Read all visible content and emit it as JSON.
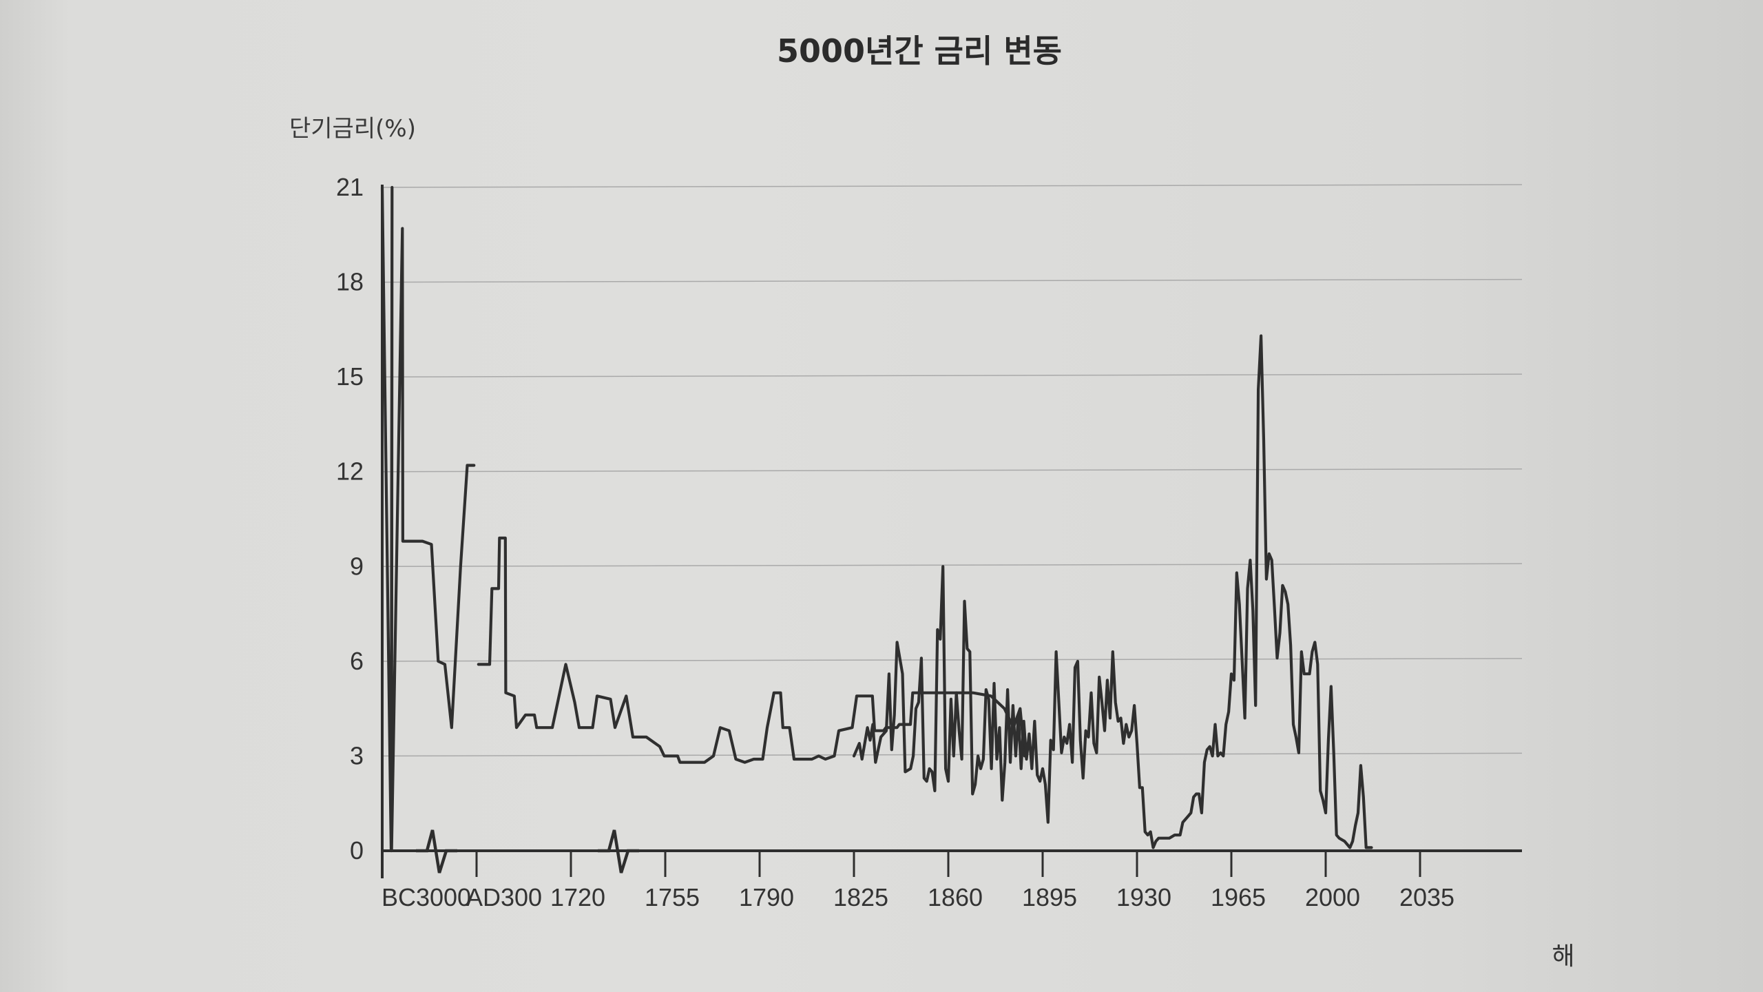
{
  "chart_data": {
    "type": "line",
    "title": "5000년간 금리 변동",
    "ylabel": "단기금리(%)",
    "xlabel": "해",
    "ylim": [
      0,
      21
    ],
    "yticks": [
      0,
      3,
      6,
      9,
      12,
      15,
      18,
      21
    ],
    "xticks": [
      "BC3000",
      "AD300",
      "1720",
      "1755",
      "1790",
      "1825",
      "1860",
      "1895",
      "1930",
      "1965",
      "2000",
      "2035"
    ],
    "grid": true,
    "axis_breaks": [
      1,
      3
    ],
    "series": [
      {
        "values": [
          [
            0,
            21
          ],
          [
            0.2,
            0
          ],
          [
            0.22,
            21
          ],
          [
            0.21,
            0
          ],
          [
            0.45,
            19.7
          ],
          [
            0.46,
            9.8
          ],
          [
            0.9,
            9.8
          ],
          [
            1.1,
            9.7
          ],
          [
            1.25,
            6
          ],
          [
            1.4,
            5.9
          ],
          [
            1.55,
            3.9
          ],
          [
            1.75,
            9
          ],
          [
            1.9,
            12.2
          ],
          [
            2.05,
            12.2
          ]
        ]
      },
      {
        "values": [
          [
            2.15,
            5.9
          ],
          [
            2.4,
            5.9
          ],
          [
            2.45,
            8.3
          ],
          [
            2.6,
            8.3
          ],
          [
            2.62,
            9.9
          ],
          [
            2.75,
            9.9
          ],
          [
            2.76,
            5
          ],
          [
            2.95,
            4.9
          ],
          [
            3.0,
            3.9
          ],
          [
            3.2,
            4.3
          ],
          [
            3.4,
            4.3
          ],
          [
            3.45,
            3.9
          ],
          [
            3.8,
            3.9
          ],
          [
            4.1,
            5.9
          ],
          [
            4.3,
            4.7
          ],
          [
            4.4,
            3.9
          ],
          [
            4.7,
            3.9
          ],
          [
            4.8,
            4.9
          ],
          [
            5.1,
            4.8
          ],
          [
            5.2,
            3.9
          ],
          [
            5.45,
            4.9
          ],
          [
            5.6,
            3.6
          ],
          [
            5.9,
            3.6
          ],
          [
            6.2,
            3.3
          ],
          [
            6.3,
            3.0
          ],
          [
            6.6,
            3.0
          ],
          [
            6.65,
            2.8
          ],
          [
            7.2,
            2.8
          ],
          [
            7.4,
            3.0
          ],
          [
            7.55,
            3.9
          ],
          [
            7.75,
            3.8
          ],
          [
            7.9,
            2.9
          ],
          [
            8.1,
            2.8
          ],
          [
            8.3,
            2.9
          ],
          [
            8.5,
            2.9
          ],
          [
            8.6,
            3.9
          ],
          [
            8.75,
            5.0
          ],
          [
            8.9,
            5.0
          ],
          [
            8.95,
            3.9
          ],
          [
            9.1,
            3.9
          ],
          [
            9.2,
            2.9
          ],
          [
            9.6,
            2.9
          ],
          [
            9.75,
            3.0
          ],
          [
            9.9,
            2.9
          ],
          [
            10.1,
            3.0
          ],
          [
            10.2,
            3.8
          ],
          [
            10.5,
            3.9
          ],
          [
            10.6,
            4.9
          ],
          [
            10.95,
            4.9
          ],
          [
            11.0,
            3.8
          ],
          [
            11.2,
            3.8
          ],
          [
            11.25,
            3.9
          ],
          [
            11.5,
            3.9
          ],
          [
            11.55,
            4.0
          ],
          [
            11.8,
            4.0
          ],
          [
            11.85,
            5.0
          ],
          [
            13.2,
            5.0
          ],
          [
            13.6,
            4.9
          ],
          [
            13.9,
            4.5
          ],
          [
            14.1,
            3.9
          ],
          [
            14.25,
            4.5
          ],
          [
            14.35,
            3.0
          ]
        ]
      },
      {
        "values": [
          [
            1825,
            3.0
          ],
          [
            1827,
            3.4
          ],
          [
            1828,
            2.9
          ],
          [
            1830,
            3.9
          ],
          [
            1831,
            3.5
          ],
          [
            1832,
            4.0
          ],
          [
            1833,
            2.8
          ],
          [
            1835,
            3.6
          ],
          [
            1837,
            3.8
          ],
          [
            1838,
            5.6
          ],
          [
            1839,
            3.2
          ],
          [
            1840,
            4.3
          ],
          [
            1841,
            6.6
          ],
          [
            1843,
            5.6
          ],
          [
            1844,
            2.5
          ],
          [
            1846,
            2.6
          ],
          [
            1847,
            3.0
          ],
          [
            1848,
            4.5
          ],
          [
            1849,
            4.7
          ],
          [
            1850,
            6.1
          ],
          [
            1851,
            2.3
          ],
          [
            1852,
            2.2
          ],
          [
            1853,
            2.6
          ],
          [
            1854,
            2.5
          ],
          [
            1855,
            1.9
          ],
          [
            1856,
            7.0
          ],
          [
            1857,
            6.7
          ],
          [
            1858,
            9.0
          ],
          [
            1859,
            2.6
          ],
          [
            1860,
            2.2
          ],
          [
            1861,
            4.8
          ],
          [
            1862,
            3.0
          ],
          [
            1863,
            5.0
          ],
          [
            1864,
            3.8
          ],
          [
            1865,
            2.9
          ],
          [
            1866,
            7.9
          ],
          [
            1867,
            6.4
          ],
          [
            1868,
            6.3
          ],
          [
            1869,
            1.8
          ],
          [
            1870,
            2.1
          ],
          [
            1871,
            3.0
          ],
          [
            1872,
            2.6
          ],
          [
            1873,
            2.9
          ],
          [
            1874,
            5.1
          ],
          [
            1875,
            4.8
          ],
          [
            1876,
            2.6
          ],
          [
            1877,
            5.3
          ],
          [
            1878,
            2.9
          ],
          [
            1879,
            3.9
          ],
          [
            1880,
            1.6
          ],
          [
            1881,
            2.8
          ],
          [
            1882,
            5.1
          ],
          [
            1883,
            2.8
          ],
          [
            1884,
            4.6
          ],
          [
            1885,
            3.0
          ],
          [
            1886,
            4.3
          ],
          [
            1887,
            2.6
          ],
          [
            1888,
            4.1
          ],
          [
            1889,
            2.9
          ],
          [
            1890,
            3.7
          ],
          [
            1891,
            2.6
          ],
          [
            1892,
            4.1
          ],
          [
            1893,
            2.4
          ],
          [
            1894,
            2.2
          ],
          [
            1895,
            2.6
          ],
          [
            1896,
            2.1
          ],
          [
            1897,
            0.9
          ],
          [
            1898,
            3.5
          ],
          [
            1899,
            3.2
          ],
          [
            1900,
            6.3
          ],
          [
            1901,
            4.7
          ],
          [
            1902,
            3.1
          ],
          [
            1903,
            3.6
          ],
          [
            1904,
            3.4
          ],
          [
            1905,
            4.0
          ],
          [
            1906,
            2.8
          ],
          [
            1907,
            5.8
          ],
          [
            1908,
            6.0
          ],
          [
            1909,
            3.5
          ],
          [
            1910,
            2.3
          ],
          [
            1911,
            3.8
          ],
          [
            1912,
            3.6
          ],
          [
            1913,
            5.0
          ],
          [
            1914,
            3.4
          ],
          [
            1915,
            3.1
          ],
          [
            1916,
            5.5
          ],
          [
            1917,
            4.7
          ],
          [
            1918,
            3.8
          ],
          [
            1919,
            5.4
          ],
          [
            1920,
            4.2
          ],
          [
            1921,
            6.3
          ],
          [
            1922,
            4.7
          ],
          [
            1923,
            4.1
          ],
          [
            1924,
            4.2
          ],
          [
            1925,
            3.4
          ],
          [
            1926,
            4.0
          ],
          [
            1927,
            3.6
          ],
          [
            1928,
            3.8
          ],
          [
            1929,
            4.6
          ],
          [
            1930,
            3.4
          ],
          [
            1931,
            2.0
          ],
          [
            1932,
            2.0
          ],
          [
            1933,
            0.6
          ],
          [
            1934,
            0.5
          ],
          [
            1935,
            0.6
          ],
          [
            1936,
            0.1
          ],
          [
            1937,
            0.3
          ],
          [
            1938,
            0.4
          ],
          [
            1940,
            0.4
          ],
          [
            1942,
            0.4
          ],
          [
            1944,
            0.5
          ],
          [
            1946,
            0.5
          ],
          [
            1947,
            0.9
          ],
          [
            1948,
            1.0
          ],
          [
            1949,
            1.1
          ],
          [
            1950,
            1.2
          ],
          [
            1951,
            1.7
          ],
          [
            1952,
            1.8
          ],
          [
            1953,
            1.8
          ],
          [
            1954,
            1.2
          ],
          [
            1955,
            2.8
          ],
          [
            1956,
            3.2
          ],
          [
            1957,
            3.3
          ],
          [
            1958,
            3.0
          ],
          [
            1959,
            4.0
          ],
          [
            1960,
            3.0
          ],
          [
            1961,
            3.1
          ],
          [
            1962,
            3.0
          ],
          [
            1963,
            4.0
          ],
          [
            1964,
            4.4
          ],
          [
            1965,
            5.6
          ],
          [
            1966,
            5.4
          ],
          [
            1967,
            8.8
          ],
          [
            1968,
            7.8
          ],
          [
            1969,
            6.0
          ],
          [
            1970,
            4.2
          ],
          [
            1971,
            8.3
          ],
          [
            1972,
            9.2
          ],
          [
            1973,
            7.6
          ],
          [
            1974,
            4.6
          ],
          [
            1975,
            14.6
          ],
          [
            1976,
            16.3
          ],
          [
            1977,
            13.0
          ],
          [
            1978,
            8.6
          ],
          [
            1979,
            9.4
          ],
          [
            1980,
            9.2
          ],
          [
            1981,
            7.7
          ],
          [
            1982,
            6.1
          ],
          [
            1983,
            6.9
          ],
          [
            1984,
            8.4
          ],
          [
            1985,
            8.2
          ],
          [
            1986,
            7.8
          ],
          [
            1987,
            6.5
          ],
          [
            1988,
            4.0
          ],
          [
            1989,
            3.6
          ],
          [
            1990,
            3.1
          ],
          [
            1991,
            6.3
          ],
          [
            1992,
            5.6
          ],
          [
            1993,
            5.6
          ],
          [
            1994,
            5.6
          ],
          [
            1995,
            6.3
          ],
          [
            1996,
            6.6
          ],
          [
            1997,
            5.9
          ],
          [
            1998,
            1.9
          ],
          [
            1999,
            1.6
          ],
          [
            2000,
            1.2
          ],
          [
            2001,
            3.5
          ],
          [
            2002,
            5.2
          ],
          [
            2003,
            3.1
          ],
          [
            2004,
            0.5
          ],
          [
            2005,
            0.4
          ],
          [
            2007,
            0.3
          ],
          [
            2009,
            0.1
          ],
          [
            2010,
            0.3
          ],
          [
            2011,
            0.8
          ],
          [
            2012,
            1.2
          ],
          [
            2013,
            2.7
          ],
          [
            2014,
            1.7
          ],
          [
            2015,
            0.1
          ],
          [
            2017,
            0.1
          ]
        ]
      }
    ]
  }
}
